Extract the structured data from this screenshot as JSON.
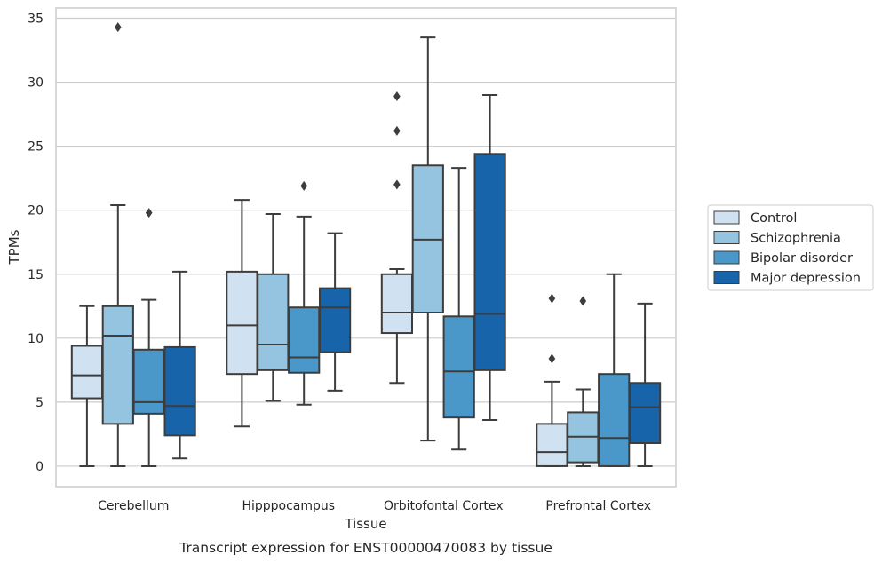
{
  "chart_data": {
    "type": "box",
    "caption": "Transcript expression for ENST00000470083 by tissue",
    "xlabel": "Tissue",
    "ylabel": "TPMs",
    "ylim": [
      -1.6,
      35.8
    ],
    "yticks": [
      0,
      5,
      10,
      15,
      20,
      25,
      30,
      35
    ],
    "grid": true,
    "legend_position": "right",
    "categories": [
      "Cerebellum",
      "Hipppocampus",
      "Orbitofontal Cortex",
      "Prefrontal Cortex"
    ],
    "series": [
      {
        "name": "Control",
        "color": "#d0e1f2",
        "boxes": [
          {
            "whislo": 0.0,
            "q1": 5.3,
            "med": 7.1,
            "q3": 9.4,
            "whishi": 12.5,
            "fliers": []
          },
          {
            "whislo": 3.1,
            "q1": 7.2,
            "med": 11.0,
            "q3": 15.2,
            "whishi": 20.8,
            "fliers": []
          },
          {
            "whislo": 6.5,
            "q1": 10.4,
            "med": 12.0,
            "q3": 15.0,
            "whishi": 15.4,
            "fliers": [
              22.0,
              26.2,
              28.9
            ]
          },
          {
            "whislo": 0.0,
            "q1": 0.0,
            "med": 1.1,
            "q3": 3.3,
            "whishi": 6.6,
            "fliers": [
              8.4,
              13.1
            ]
          }
        ]
      },
      {
        "name": "Schizophrenia",
        "color": "#94c4df",
        "boxes": [
          {
            "whislo": 0.0,
            "q1": 3.3,
            "med": 10.2,
            "q3": 12.5,
            "whishi": 20.4,
            "fliers": [
              34.3
            ]
          },
          {
            "whislo": 5.1,
            "q1": 7.5,
            "med": 9.5,
            "q3": 15.0,
            "whishi": 19.7,
            "fliers": []
          },
          {
            "whislo": 2.0,
            "q1": 12.0,
            "med": 17.7,
            "q3": 23.5,
            "whishi": 33.5,
            "fliers": []
          },
          {
            "whislo": 0.0,
            "q1": 0.3,
            "med": 2.3,
            "q3": 4.2,
            "whishi": 6.0,
            "fliers": [
              12.9
            ]
          }
        ]
      },
      {
        "name": "Bipolar disorder",
        "color": "#4a98c9",
        "boxes": [
          {
            "whislo": 0.0,
            "q1": 4.1,
            "med": 5.0,
            "q3": 9.1,
            "whishi": 13.0,
            "fliers": [
              19.8
            ]
          },
          {
            "whislo": 4.8,
            "q1": 7.3,
            "med": 8.5,
            "q3": 12.4,
            "whishi": 19.5,
            "fliers": [
              21.9
            ]
          },
          {
            "whislo": 1.3,
            "q1": 3.8,
            "med": 7.4,
            "q3": 11.7,
            "whishi": 23.3,
            "fliers": []
          },
          {
            "whislo": 0.0,
            "q1": 0.0,
            "med": 2.2,
            "q3": 7.2,
            "whishi": 15.0,
            "fliers": []
          }
        ]
      },
      {
        "name": "Major depression",
        "color": "#1764ab",
        "boxes": [
          {
            "whislo": 0.6,
            "q1": 2.4,
            "med": 4.7,
            "q3": 9.3,
            "whishi": 15.2,
            "fliers": []
          },
          {
            "whislo": 5.9,
            "q1": 8.9,
            "med": 12.4,
            "q3": 13.9,
            "whishi": 18.2,
            "fliers": []
          },
          {
            "whislo": 3.6,
            "q1": 7.5,
            "med": 11.9,
            "q3": 24.4,
            "whishi": 29.0,
            "fliers": []
          },
          {
            "whislo": 0.0,
            "q1": 1.8,
            "med": 4.6,
            "q3": 6.5,
            "whishi": 12.7,
            "fliers": []
          }
        ]
      }
    ]
  }
}
